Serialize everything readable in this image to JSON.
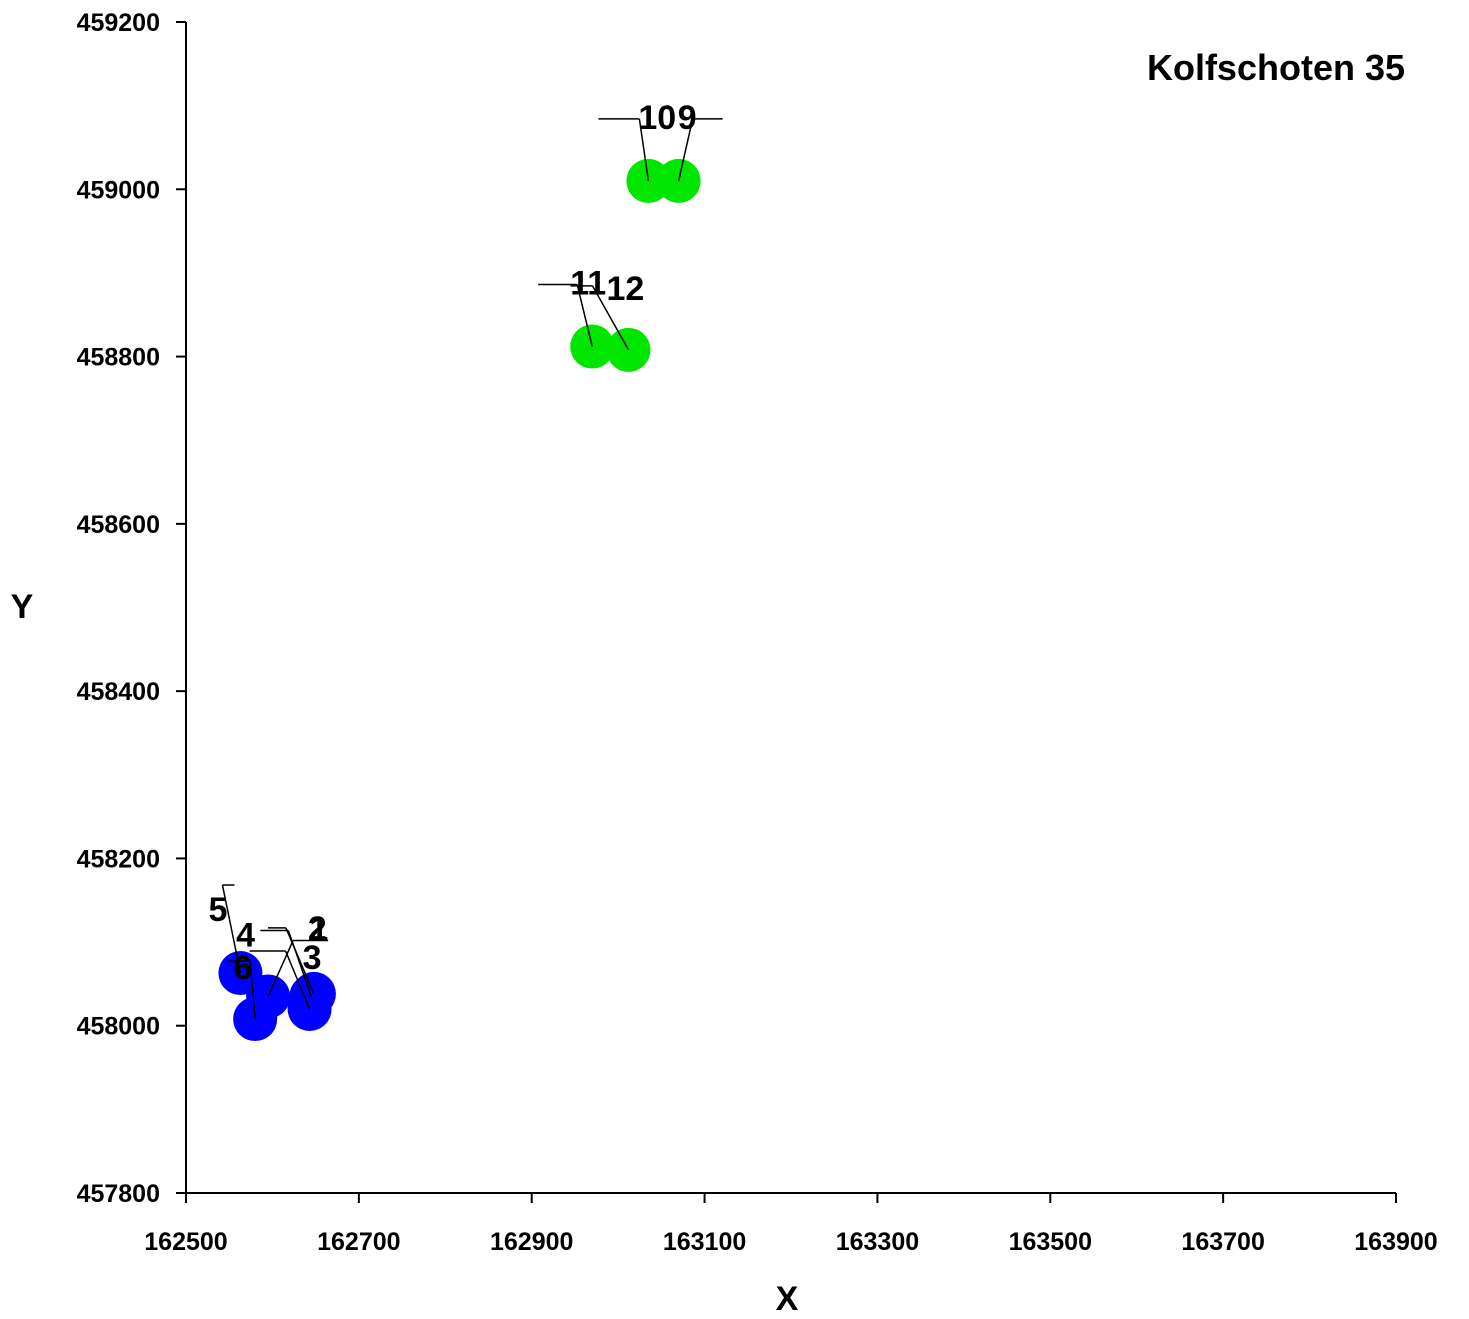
{
  "chart_data": {
    "type": "scatter",
    "title": "Kolfschoten 35",
    "xlabel": "X",
    "ylabel": "Y",
    "xlim": [
      162500,
      163900
    ],
    "ylim": [
      457800,
      459200
    ],
    "x_ticks": [
      "162500",
      "162700",
      "162900",
      "163100",
      "163300",
      "163500",
      "163700",
      "163900"
    ],
    "y_ticks": [
      "457800",
      "458000",
      "458200",
      "458400",
      "458600",
      "458800",
      "459000",
      "459200"
    ],
    "grid": false,
    "legend": "none",
    "series": [
      {
        "color": "#0000ff",
        "points": [
          {
            "label": "1",
            "x": 162645,
            "y": 458035
          },
          {
            "label": "2",
            "x": 162648,
            "y": 458038
          },
          {
            "label": "3",
            "x": 162643,
            "y": 458020
          },
          {
            "label": "4",
            "x": 162595,
            "y": 458035
          },
          {
            "label": "5",
            "x": 162563,
            "y": 458063
          },
          {
            "label": "6",
            "x": 162580,
            "y": 458008
          }
        ]
      },
      {
        "color": "#00e600",
        "points": [
          {
            "label": "9",
            "x": 163070,
            "y": 459010
          },
          {
            "label": "10",
            "x": 163035,
            "y": 459010
          },
          {
            "label": "11",
            "x": 162970,
            "y": 458812
          },
          {
            "label": "12",
            "x": 163012,
            "y": 458808
          }
        ]
      }
    ]
  }
}
